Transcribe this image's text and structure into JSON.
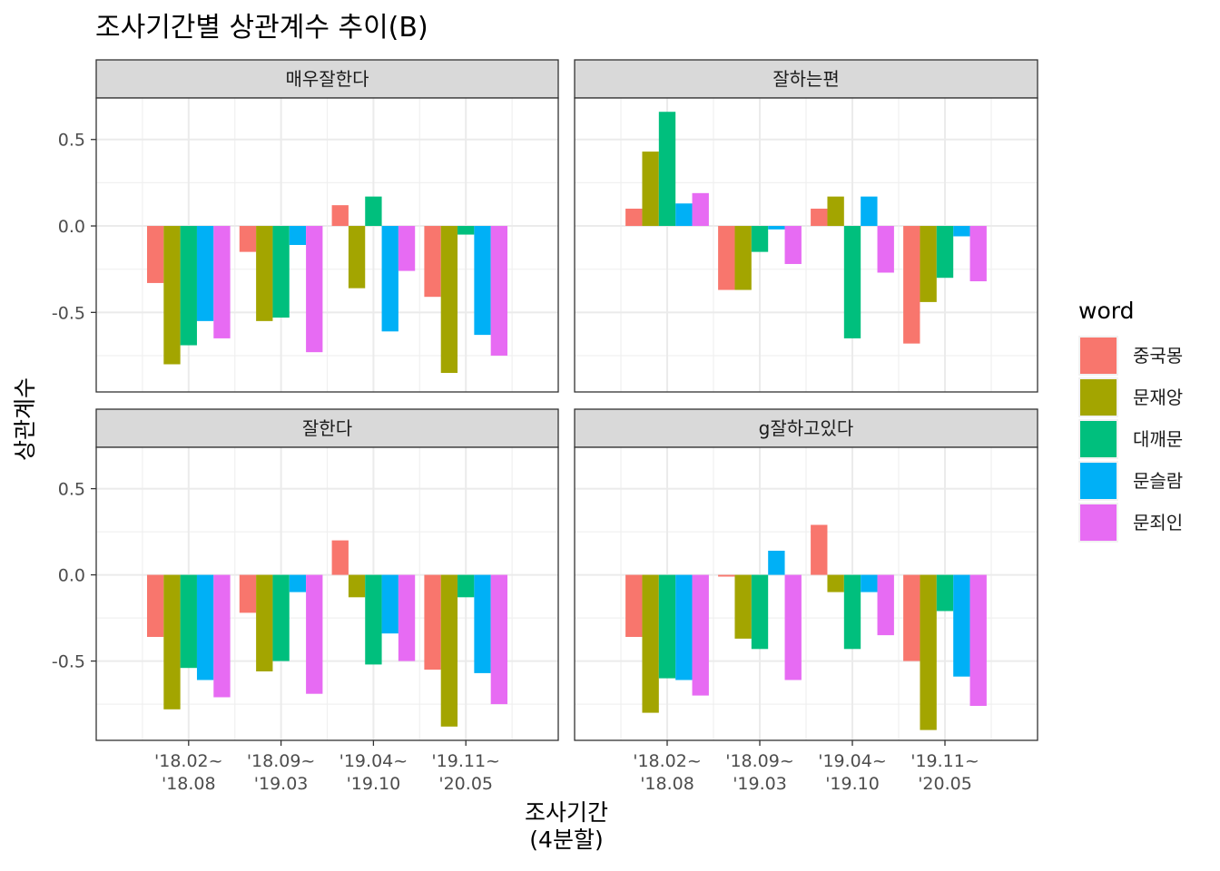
{
  "chart_data": {
    "type": "bar",
    "title": "조사기간별 상관계수 추이(B)",
    "xlabel": "조사기간\n(4분할)",
    "ylabel": "상관계수",
    "categories": [
      "'18.02~\n'18.08",
      "'18.09~\n'19.03",
      "'19.04~\n'19.10",
      "'19.11~\n'20.05"
    ],
    "ylim": [
      -0.96,
      0.74
    ],
    "yticks": [
      0.5,
      0.0,
      -0.5
    ],
    "ytick_labels": [
      "0.5",
      "0.0",
      "-0.5"
    ],
    "grid": true,
    "legend": {
      "title": "word",
      "placement": "right",
      "entries": [
        "중국몽",
        "문재앙",
        "대깨문",
        "문슬람",
        "문죄인"
      ],
      "colors": [
        "#F8766D",
        "#A3A500",
        "#00BF7D",
        "#00B0F6",
        "#E76BF3"
      ]
    },
    "panels": [
      {
        "strip": "매우잘한다",
        "series": [
          {
            "name": "중국몽",
            "values": [
              -0.33,
              -0.15,
              0.12,
              -0.41
            ]
          },
          {
            "name": "문재앙",
            "values": [
              -0.8,
              -0.55,
              -0.36,
              -0.85
            ]
          },
          {
            "name": "대깨문",
            "values": [
              -0.69,
              -0.53,
              0.17,
              -0.05
            ]
          },
          {
            "name": "문슬람",
            "values": [
              -0.55,
              -0.11,
              -0.61,
              -0.63
            ]
          },
          {
            "name": "문죄인",
            "values": [
              -0.65,
              -0.73,
              -0.26,
              -0.75
            ]
          }
        ]
      },
      {
        "strip": "잘하는편",
        "series": [
          {
            "name": "중국몽",
            "values": [
              0.1,
              -0.37,
              0.1,
              -0.68
            ]
          },
          {
            "name": "문재앙",
            "values": [
              0.43,
              -0.37,
              0.17,
              -0.44
            ]
          },
          {
            "name": "대깨문",
            "values": [
              0.66,
              -0.15,
              -0.65,
              -0.3
            ]
          },
          {
            "name": "문슬람",
            "values": [
              0.13,
              -0.02,
              0.17,
              -0.06
            ]
          },
          {
            "name": "문죄인",
            "values": [
              0.19,
              -0.22,
              -0.27,
              -0.32
            ]
          }
        ]
      },
      {
        "strip": "잘한다",
        "series": [
          {
            "name": "중국몽",
            "values": [
              -0.36,
              -0.22,
              0.2,
              -0.55
            ]
          },
          {
            "name": "문재앙",
            "values": [
              -0.78,
              -0.56,
              -0.13,
              -0.88
            ]
          },
          {
            "name": "대깨문",
            "values": [
              -0.54,
              -0.5,
              -0.52,
              -0.13
            ]
          },
          {
            "name": "문슬람",
            "values": [
              -0.61,
              -0.1,
              -0.34,
              -0.57
            ]
          },
          {
            "name": "문죄인",
            "values": [
              -0.71,
              -0.69,
              -0.5,
              -0.75
            ]
          }
        ]
      },
      {
        "strip": "g잘하고있다",
        "series": [
          {
            "name": "중국몽",
            "values": [
              -0.36,
              -0.01,
              0.29,
              -0.5
            ]
          },
          {
            "name": "문재앙",
            "values": [
              -0.8,
              -0.37,
              -0.1,
              -0.9
            ]
          },
          {
            "name": "대깨문",
            "values": [
              -0.6,
              -0.43,
              -0.43,
              -0.21
            ]
          },
          {
            "name": "문슬람",
            "values": [
              -0.61,
              0.14,
              -0.1,
              -0.59
            ]
          },
          {
            "name": "문죄인",
            "values": [
              -0.7,
              -0.61,
              -0.35,
              -0.76
            ]
          }
        ]
      }
    ]
  }
}
